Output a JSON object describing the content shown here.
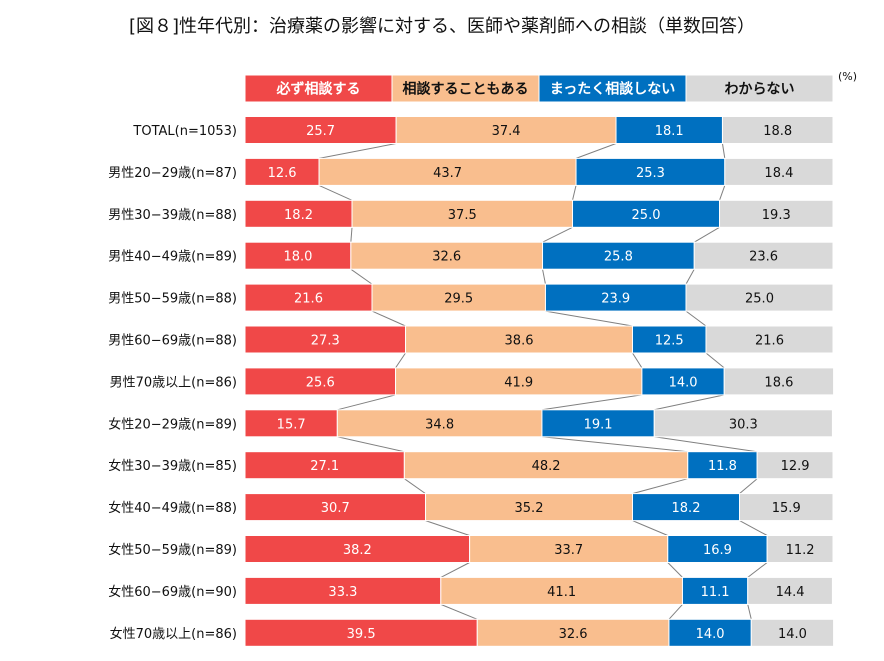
{
  "chart_data": {
    "type": "bar",
    "stacked": true,
    "orientation": "horizontal",
    "title": "[図８]性年代別：治療薬の影響に対する、医師や薬剤師への相談（単数回答）",
    "unit": "(%)",
    "categories": [
      "TOTAL(n=1053)",
      "男性20−29歳(n=87)",
      "男性30−39歳(n=88)",
      "男性40−49歳(n=89)",
      "男性50−59歳(n=88)",
      "男性60−69歳(n=88)",
      "男性70歳以上(n=86)",
      "女性20−29歳(n=89)",
      "女性30−39歳(n=85)",
      "女性40−49歳(n=88)",
      "女性50−59歳(n=89)",
      "女性60−69歳(n=90)",
      "女性70歳以上(n=86)"
    ],
    "series": [
      {
        "name": "必ず相談する",
        "color": "#f04848",
        "text_color": "#ffffff",
        "values": [
          25.7,
          12.6,
          18.2,
          18.0,
          21.6,
          27.3,
          25.6,
          15.7,
          27.1,
          30.7,
          38.2,
          33.3,
          39.5
        ]
      },
      {
        "name": "相談することもある",
        "color": "#f9be8e",
        "text_color": "#111111",
        "values": [
          37.4,
          43.7,
          37.5,
          32.6,
          29.5,
          38.6,
          41.9,
          34.8,
          48.2,
          35.2,
          33.7,
          41.1,
          32.6
        ]
      },
      {
        "name": "まったく相談しない",
        "color": "#0070c0",
        "text_color": "#ffffff",
        "values": [
          18.1,
          25.3,
          25.0,
          25.8,
          23.9,
          12.5,
          14.0,
          19.1,
          11.8,
          18.2,
          16.9,
          11.1,
          14.0
        ]
      },
      {
        "name": "わからない",
        "color": "#d9d9d9",
        "text_color": "#111111",
        "values": [
          18.8,
          18.4,
          19.3,
          23.6,
          25.0,
          21.6,
          18.6,
          30.3,
          12.9,
          15.9,
          11.2,
          14.4,
          14.0
        ]
      }
    ],
    "xlim": [
      0,
      100
    ],
    "legend": "top",
    "series_lines": true
  }
}
